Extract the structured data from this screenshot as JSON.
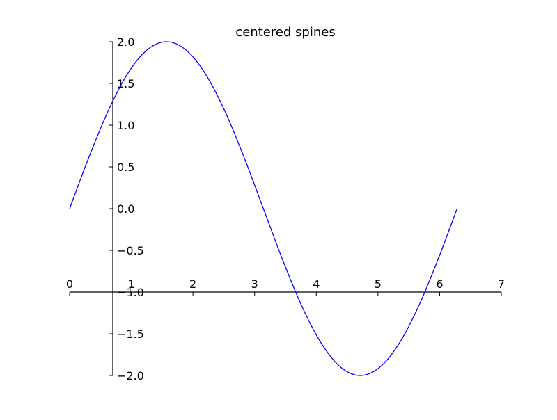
{
  "chart_data": {
    "type": "line",
    "title": "centered spines",
    "xlabel": "",
    "ylabel": "",
    "xlim": [
      0,
      7
    ],
    "ylim": [
      -2.0,
      2.0
    ],
    "grid": false,
    "x_ticks": [
      0,
      1,
      2,
      3,
      4,
      5,
      6,
      7
    ],
    "x_tick_labels": [
      "0",
      "1",
      "2",
      "3",
      "4",
      "5",
      "6",
      "7"
    ],
    "y_ticks": [
      2.0,
      1.5,
      1.0,
      0.5,
      0.0,
      -0.5,
      -1.0,
      -1.5,
      -2.0
    ],
    "y_tick_labels": [
      "2.0",
      "1.5",
      "1.0",
      "0.5",
      "0.0",
      "−0.5",
      "−1.0",
      "−1.5",
      "−2.0"
    ],
    "x_spine_at_y": -1.0,
    "y_spine_at_x": 0.7,
    "series": [
      {
        "color": "#0000ff",
        "x": [
          0.0,
          0.314,
          0.628,
          0.942,
          1.257,
          1.571,
          1.885,
          2.199,
          2.513,
          2.827,
          3.142,
          3.456,
          3.77,
          4.084,
          4.398,
          4.712,
          5.027,
          5.341,
          5.655,
          5.969,
          6.283
        ],
        "y": [
          0.0,
          0.618,
          1.176,
          1.618,
          1.902,
          2.0,
          1.902,
          1.618,
          1.176,
          0.618,
          0.0,
          -0.618,
          -1.176,
          -1.618,
          -1.902,
          -2.0,
          -1.902,
          -1.618,
          -1.176,
          -0.618,
          0.0
        ]
      }
    ]
  }
}
